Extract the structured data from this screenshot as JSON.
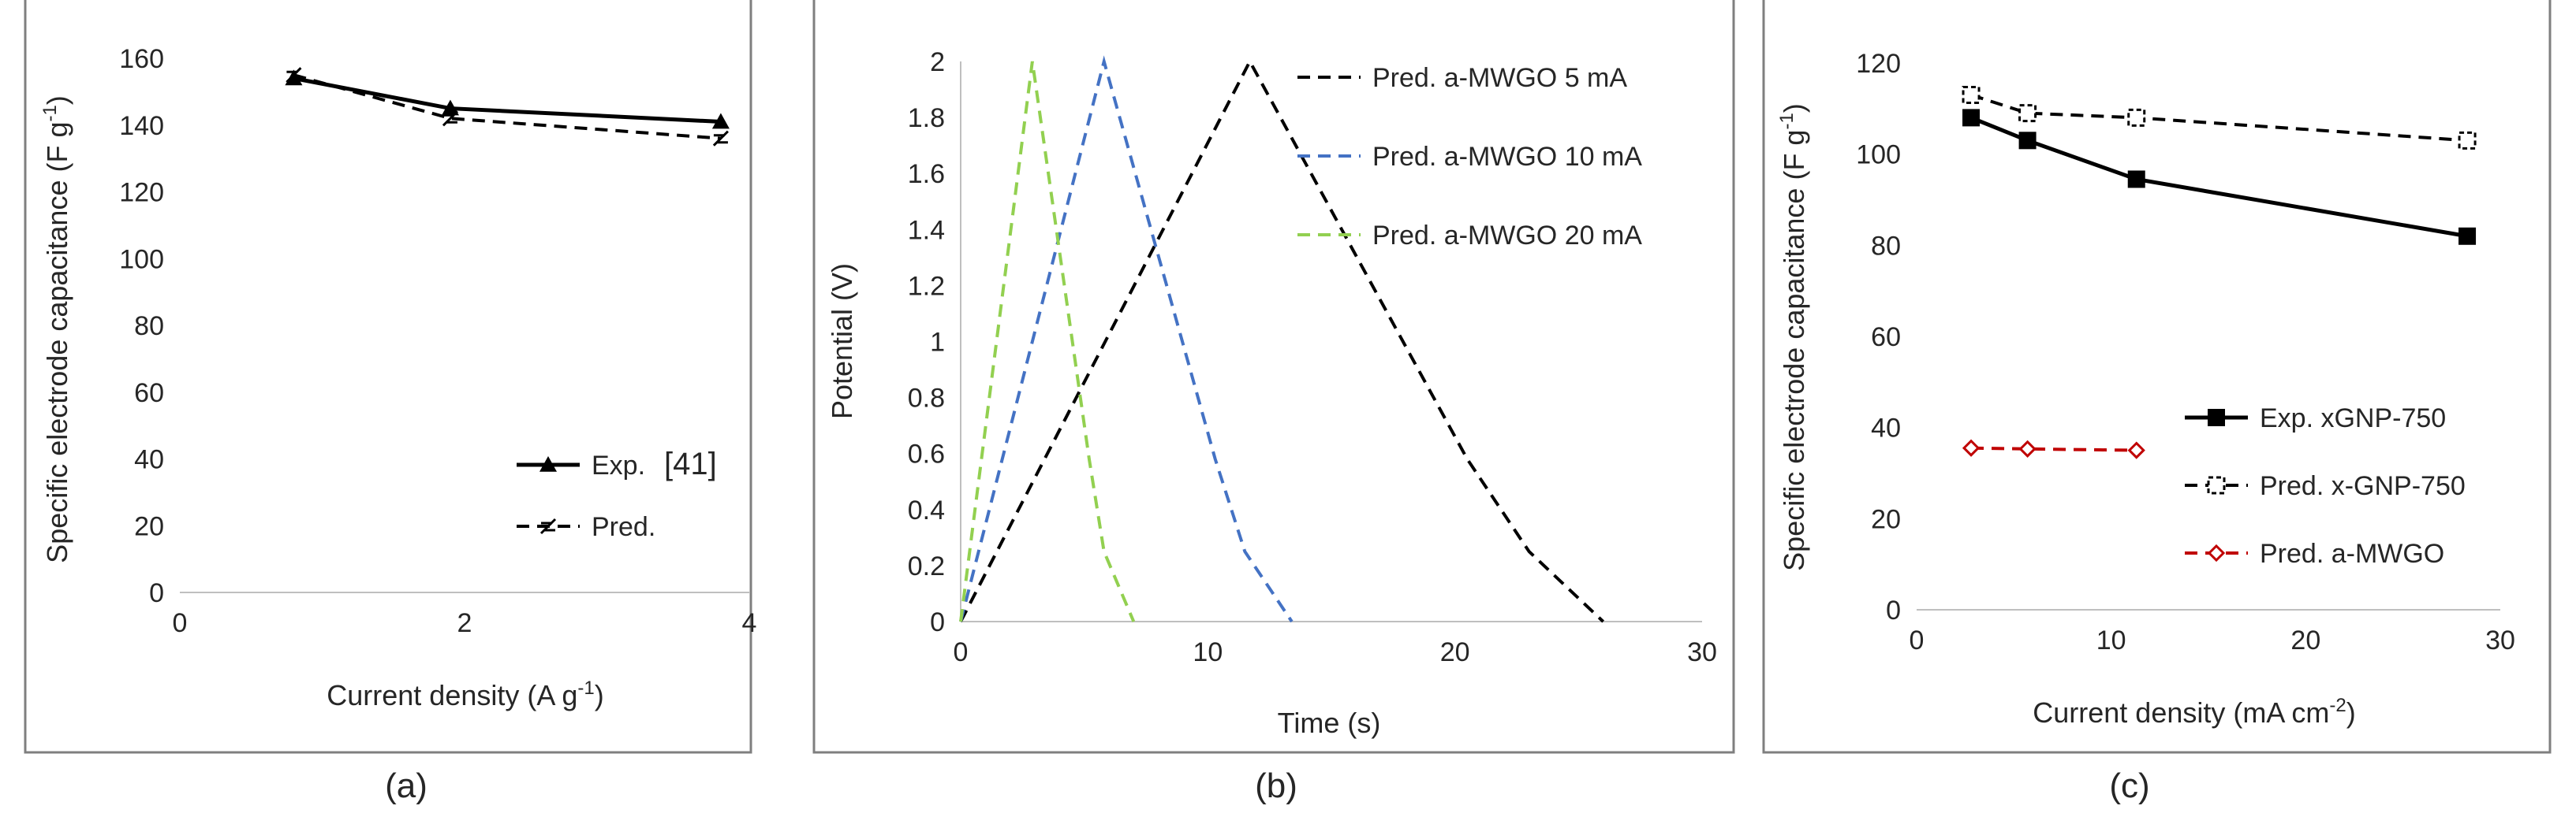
{
  "chart_data": [
    {
      "panel": "(a)",
      "type": "line",
      "xlabel": "Current density (A g",
      "xlabel_sup": "-1",
      "xlabel_end": ")",
      "ylabel": "Specific electrode capacitance (F g",
      "ylabel_sup": "-1",
      "ylabel_end": ")",
      "xlim": [
        0,
        4
      ],
      "ylim": [
        0,
        160
      ],
      "xticks": [
        0,
        2,
        4
      ],
      "yticks": [
        0,
        20,
        40,
        60,
        80,
        100,
        120,
        140,
        160
      ],
      "grid": false,
      "legend_position": "bottom-right",
      "series": [
        {
          "name": "Exp.",
          "legend_ref": "[41]",
          "x": [
            0.8,
            1.9,
            3.8
          ],
          "y": [
            154,
            145,
            141
          ],
          "style": "solid",
          "marker": "triangle",
          "color": "#000000"
        },
        {
          "name": "Pred.",
          "x": [
            0.8,
            1.9,
            3.8
          ],
          "y": [
            155,
            142,
            136
          ],
          "style": "dashed",
          "marker": "cross-open",
          "color": "#000000"
        }
      ]
    },
    {
      "panel": "(b)",
      "type": "line",
      "xlabel": "Time (s)",
      "ylabel": "Potential (V)",
      "xlim": [
        0,
        30
      ],
      "ylim": [
        0,
        2
      ],
      "xticks": [
        0,
        10,
        20,
        30
      ],
      "yticks": [
        0,
        0.2,
        0.4,
        0.6,
        0.8,
        1,
        1.2,
        1.4,
        1.6,
        1.8,
        2
      ],
      "grid": false,
      "legend_position": "top-right",
      "series": [
        {
          "name": "Pred. a-MWGO 5 mA",
          "x": [
            0,
            11.7,
            20.5,
            23,
            26
          ],
          "y": [
            0,
            2,
            0.58,
            0.25,
            0
          ],
          "style": "dashed",
          "color": "#000000"
        },
        {
          "name": "Pred. a-MWGO 10 mA",
          "x": [
            0,
            5.8,
            10.3,
            11.5,
            13.4
          ],
          "y": [
            0,
            2,
            0.58,
            0.25,
            0
          ],
          "style": "dashed",
          "color": "#4472c4"
        },
        {
          "name": "Pred. a-MWGO 20 mA",
          "x": [
            0,
            2.9,
            5.2,
            5.8,
            7
          ],
          "y": [
            0,
            2,
            0.58,
            0.25,
            0
          ],
          "style": "dashed",
          "color": "#92d050"
        }
      ]
    },
    {
      "panel": "(c)",
      "type": "line",
      "xlabel": "Current density (mA cm",
      "xlabel_sup": "-2",
      "xlabel_end": ")",
      "ylabel": "Specific electrode capacitance (F g",
      "ylabel_sup": "-1",
      "ylabel_end": ")",
      "xlim": [
        0,
        30
      ],
      "ylim": [
        0,
        120
      ],
      "xticks": [
        0,
        10,
        20,
        30
      ],
      "yticks": [
        0,
        20,
        40,
        60,
        80,
        100,
        120
      ],
      "grid": false,
      "legend_position": "bottom-right",
      "series": [
        {
          "name": "Exp. xGNP-750",
          "x": [
            2.8,
            5.7,
            11.3,
            28.3
          ],
          "y": [
            108,
            103,
            94.5,
            82
          ],
          "style": "solid",
          "marker": "square",
          "color": "#000000"
        },
        {
          "name": "Pred. x-GNP-750",
          "x": [
            2.8,
            5.7,
            11.3,
            28.3
          ],
          "y": [
            113,
            109,
            108,
            103
          ],
          "style": "dashed",
          "marker": "square-open",
          "color": "#000000"
        },
        {
          "name": "Pred. a-MWGO",
          "x": [
            2.8,
            5.7,
            11.3
          ],
          "y": [
            35.5,
            35.3,
            35
          ],
          "style": "dashed",
          "marker": "diamond-open",
          "color": "#c00000"
        }
      ]
    }
  ],
  "panel_labels": [
    "(a)",
    "(b)",
    "(c)"
  ],
  "colors": {
    "frame": "#7f7f7f",
    "axis": "#bfbfbf",
    "text": "#262626"
  }
}
